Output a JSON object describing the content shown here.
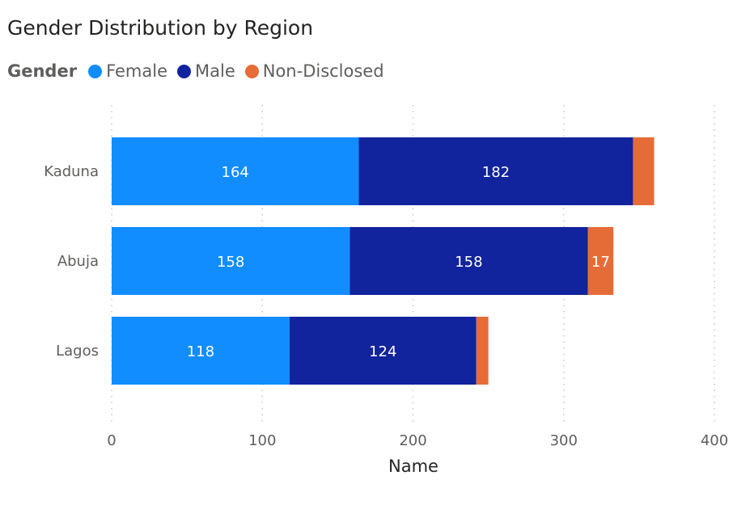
{
  "chart_data": {
    "type": "bar",
    "orientation": "horizontal",
    "stacked": true,
    "title": "Gender Distribution by Region",
    "legend_title": "Gender",
    "legend_position": "top-left",
    "categories": [
      "Kaduna",
      "Abuja",
      "Lagos"
    ],
    "series": [
      {
        "name": "Female",
        "color": "#118dff",
        "values": [
          164,
          158,
          118
        ],
        "labels": [
          "164",
          "158",
          "118"
        ]
      },
      {
        "name": "Male",
        "color": "#12239e",
        "values": [
          182,
          158,
          124
        ],
        "labels": [
          "182",
          "158",
          "124"
        ]
      },
      {
        "name": "Non-Disclosed",
        "color": "#e66c37",
        "values": [
          14,
          17,
          8
        ],
        "labels": [
          "",
          "17",
          ""
        ]
      }
    ],
    "xlabel": "Name",
    "ylabel": "",
    "xlim": [
      0,
      400
    ],
    "xticks": [
      "0",
      "100",
      "200",
      "300",
      "400"
    ],
    "grid": "vertical-dotted"
  }
}
